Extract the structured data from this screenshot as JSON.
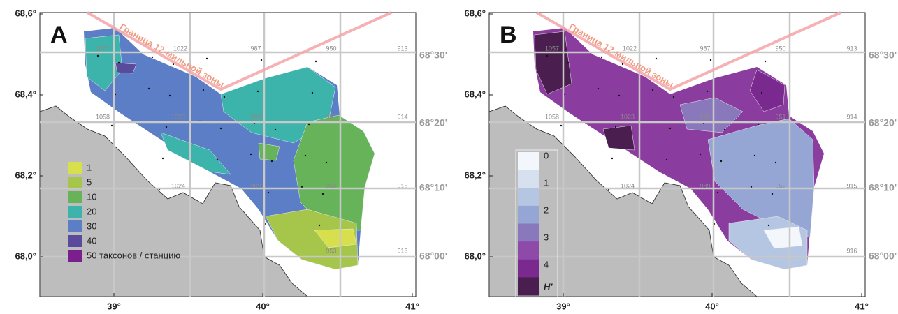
{
  "panels": [
    {
      "letter": "A",
      "boundary_label": "Граница 12-мильной зоны",
      "lat_ticks": [
        "68,6°",
        "68,4°",
        "68,2°",
        "68,0°"
      ],
      "lon_ticks": [
        "39°",
        "40°",
        "41°"
      ],
      "lat_minutes": [
        "68°30'",
        "68°20'",
        "68°10'",
        "68°00'"
      ],
      "square_labels": [
        "1057",
        "1022",
        "987",
        "950",
        "913",
        "1058",
        "1023",
        "988",
        "951",
        "914",
        "1024",
        "989",
        "952",
        "915",
        "953",
        "916"
      ],
      "legend": {
        "labels": [
          "1",
          "5",
          "10",
          "20",
          "30",
          "40",
          "50 таксонов / станцию"
        ],
        "colors": [
          "#d8df4c",
          "#a6c64b",
          "#66b35a",
          "#3cb4ac",
          "#5b7ec6",
          "#5a4a9c",
          "#7b1f8f"
        ]
      }
    },
    {
      "letter": "B",
      "boundary_label": "Граница 12-мильной зоны",
      "lat_ticks": [
        "68,6°",
        "68,4°",
        "68,2°",
        "68,0°"
      ],
      "lon_ticks": [
        "39°",
        "40°",
        "41°"
      ],
      "lat_minutes": [
        "68°30'",
        "68°20'",
        "68°10'",
        "68°00'"
      ],
      "square_labels": [
        "1057",
        "1022",
        "987",
        "950",
        "913",
        "1058",
        "1023",
        "988",
        "951",
        "914",
        "1024",
        "989",
        "952",
        "915",
        "916"
      ],
      "legend": {
        "labels": [
          "0",
          "1",
          "2",
          "3",
          "4",
          "H'"
        ],
        "colors": [
          "#f3f6fb",
          "#d6e0ef",
          "#b4c6e2",
          "#96a6d4",
          "#8a78bc",
          "#8e4aa8",
          "#7a2a8e",
          "#4a1e4e"
        ]
      }
    }
  ]
}
